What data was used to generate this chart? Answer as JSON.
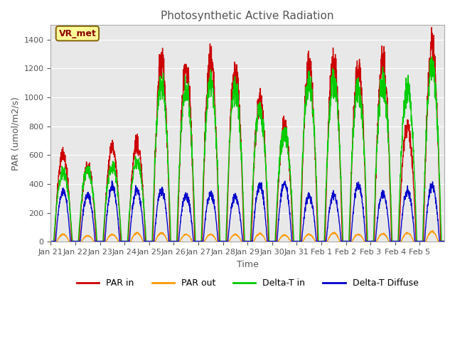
{
  "title": "Photosynthetic Active Radiation",
  "xlabel": "Time",
  "ylabel": "PAR (umol/m2/s)",
  "ylim": [
    0,
    1500
  ],
  "background_color": "#ffffff",
  "plot_bg_color": "#e8e8e8",
  "annotation_label": "VR_met",
  "annotation_bg": "#ffff99",
  "annotation_border": "#8B6914",
  "legend_entries": [
    "PAR in",
    "PAR out",
    "Delta-T in",
    "Delta-T Diffuse"
  ],
  "line_colors": [
    "#cc0000",
    "#ff9900",
    "#00cc00",
    "#0000cc"
  ],
  "xtick_labels": [
    "Jan 21",
    "Jan 22",
    "Jan 23",
    "Jan 24",
    "Jan 25",
    "Jan 26",
    "Jan 27",
    "Jan 28",
    "Jan 29",
    "Jan 30",
    "Jan 31",
    "Feb 1",
    "Feb 2",
    "Feb 3",
    "Feb 4",
    "Feb 5"
  ],
  "num_days": 16,
  "points_per_day": 144,
  "par_in_peaks": [
    600,
    520,
    650,
    680,
    1250,
    1200,
    1250,
    1200,
    970,
    800,
    1200,
    1250,
    1200,
    1250,
    800,
    1350
  ],
  "par_out_peaks": [
    50,
    40,
    50,
    60,
    60,
    50,
    50,
    50,
    55,
    45,
    50,
    60,
    50,
    55,
    60,
    70
  ],
  "delta_in_peaks": [
    480,
    500,
    520,
    550,
    1100,
    1050,
    1100,
    1050,
    900,
    750,
    1100,
    1100,
    1050,
    1100,
    1050,
    1200
  ],
  "delta_diff_peaks": [
    350,
    320,
    380,
    360,
    350,
    320,
    330,
    310,
    390,
    400,
    310,
    320,
    390,
    330,
    350,
    380
  ]
}
